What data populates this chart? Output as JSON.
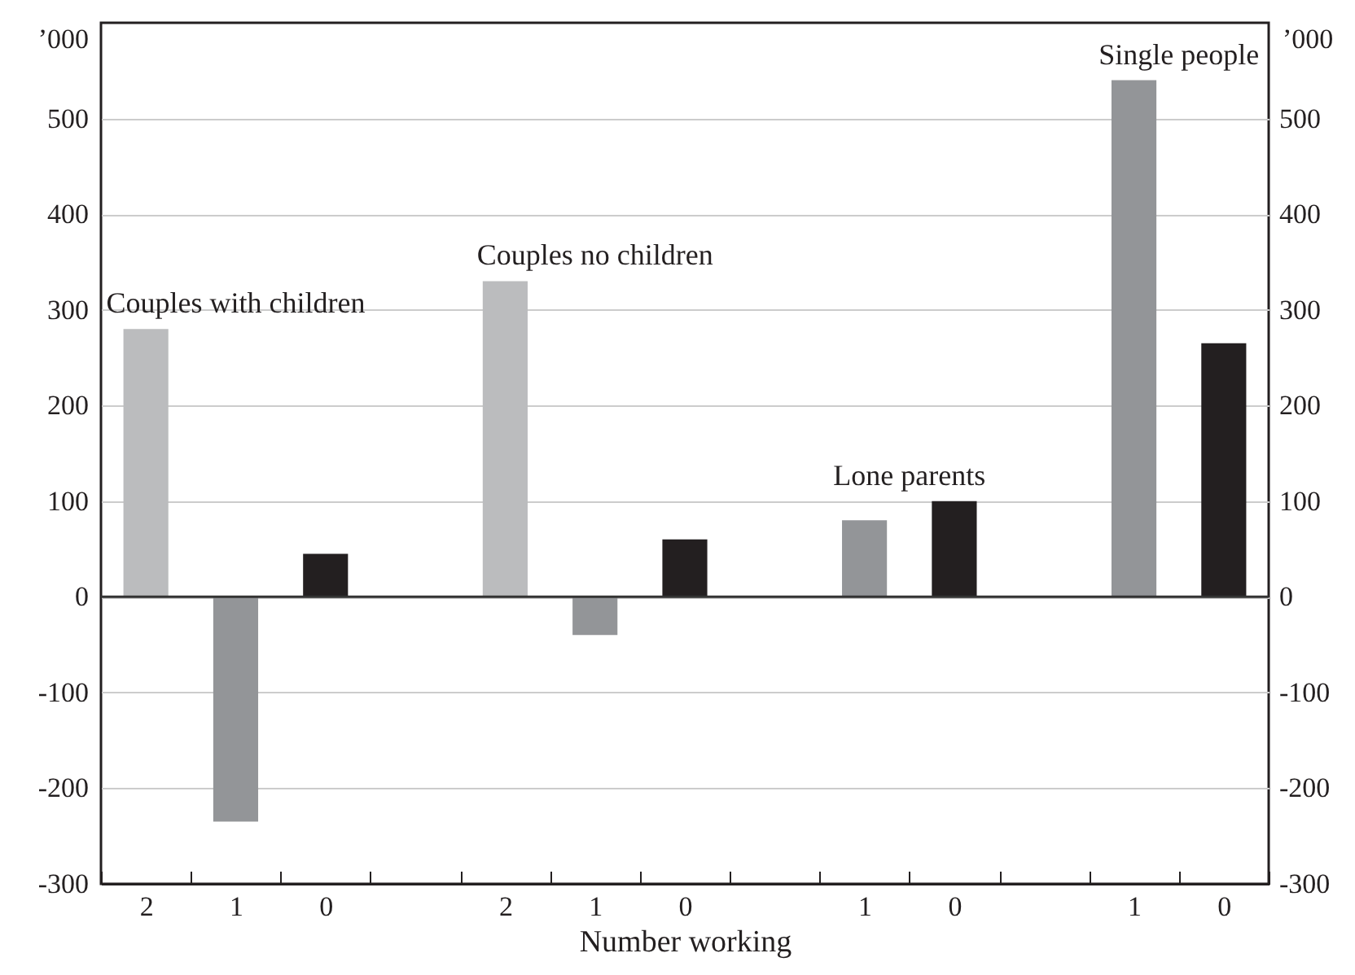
{
  "chart_data": {
    "type": "bar",
    "xlabel": "Number working",
    "ylabel": "’000",
    "y2label": "’000",
    "categories": [
      "2",
      "1",
      "0",
      null,
      "2",
      "1",
      "0",
      null,
      "1",
      "0",
      null,
      "1",
      "0"
    ],
    "values": [
      280,
      -235,
      45,
      null,
      330,
      -40,
      60,
      null,
      80,
      100,
      null,
      540,
      265
    ],
    "colors": [
      "#bbbcbe",
      "#939598",
      "#231f20",
      null,
      "#bbbcbe",
      "#939598",
      "#231f20",
      null,
      "#939598",
      "#231f20",
      null,
      "#939598",
      "#231f20"
    ],
    "ylim": [
      -300,
      600
    ],
    "yticks": [
      -300,
      -200,
      -100,
      0,
      100,
      200,
      300,
      400,
      500
    ],
    "y2lim": [
      -300,
      600
    ],
    "y2ticks": [
      -300,
      -200,
      -100,
      0,
      100,
      200,
      300,
      400,
      500
    ],
    "annotations": [
      "Couples with children",
      "Couples no children",
      "Lone parents",
      "Single people"
    ],
    "ref_lines": [
      {
        "axis": "y",
        "value": 0,
        "color": "#333333"
      }
    ],
    "grid": "y"
  }
}
